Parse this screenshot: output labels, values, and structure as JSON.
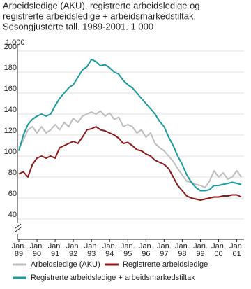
{
  "chart_data": {
    "type": "line",
    "title": [
      "Arbeidsledige (AKU), registrerte arbeidsledige og",
      "registrerte arbeidsledige + arbeidsmarkedstiltak.",
      "Sesongjusterte tall. 1989-2001. 1 000"
    ],
    "y_unit": "1 000",
    "x": [
      1989,
      1989.25,
      1989.5,
      1989.75,
      1990,
      1990.25,
      1990.5,
      1990.75,
      1991,
      1991.25,
      1991.5,
      1991.75,
      1992,
      1992.25,
      1992.5,
      1992.75,
      1993,
      1993.25,
      1993.5,
      1993.75,
      1994,
      1994.25,
      1994.5,
      1994.75,
      1995,
      1995.25,
      1995.5,
      1995.75,
      1996,
      1996.25,
      1996.5,
      1996.75,
      1997,
      1997.25,
      1997.5,
      1997.75,
      1998,
      1998.25,
      1998.5,
      1998.75,
      1999,
      1999.25,
      1999.5,
      1999.75,
      2000,
      2000.25,
      2000.5,
      2000.75,
      2001,
      2001.25
    ],
    "series": [
      {
        "name": "Arbeidsledige (AKU)",
        "color": "#bdbdbd",
        "values": [
          108,
          115,
          125,
          128,
          122,
          128,
          122,
          125,
          130,
          125,
          132,
          128,
          136,
          132,
          138,
          140,
          142,
          140,
          143,
          138,
          141,
          135,
          137,
          128,
          130,
          128,
          122,
          125,
          118,
          122,
          112,
          108,
          105,
          100,
          95,
          88,
          82,
          76,
          75,
          73,
          72,
          70,
          76,
          86,
          80,
          84,
          78,
          80,
          86,
          80
        ]
      },
      {
        "name": "Registrerte arbeidsledige",
        "color": "#8b1a1a",
        "values": [
          83,
          85,
          80,
          92,
          98,
          100,
          98,
          100,
          98,
          108,
          110,
          112,
          114,
          112,
          118,
          125,
          126,
          128,
          125,
          124,
          122,
          120,
          117,
          112,
          113,
          110,
          106,
          105,
          102,
          100,
          96,
          94,
          92,
          88,
          80,
          72,
          67,
          62,
          60,
          59,
          58,
          59,
          60,
          61,
          61,
          62,
          62,
          63,
          63,
          61
        ]
      },
      {
        "name": "Registrerte arbeidsledige + arbeidsmarkedstiltak",
        "color": "#1a9a9a",
        "values": [
          105,
          120,
          130,
          135,
          138,
          140,
          138,
          140,
          148,
          155,
          160,
          165,
          168,
          175,
          182,
          185,
          192,
          190,
          186,
          187,
          184,
          180,
          178,
          172,
          168,
          165,
          160,
          155,
          150,
          145,
          140,
          133,
          128,
          118,
          110,
          100,
          92,
          82,
          75,
          70,
          67,
          67,
          68,
          72,
          72,
          73,
          74,
          75,
          74,
          73
        ]
      }
    ],
    "xlim": [
      1989,
      2001.4
    ],
    "xticks": [
      {
        "value": 1989,
        "label": "Jan. 89"
      },
      {
        "value": 1990,
        "label": "Jan. 90"
      },
      {
        "value": 1991,
        "label": "Jan. 91"
      },
      {
        "value": 1992,
        "label": "Jan. 92"
      },
      {
        "value": 1993,
        "label": "Jan. 93"
      },
      {
        "value": 1994,
        "label": "Jan. 94"
      },
      {
        "value": 1995,
        "label": "Jan. 95"
      },
      {
        "value": 1996,
        "label": "Jan. 96"
      },
      {
        "value": 1997,
        "label": "Jan. 97"
      },
      {
        "value": 1998,
        "label": "Jan. 98"
      },
      {
        "value": 1999,
        "label": "Jan. 99"
      },
      {
        "value": 2000,
        "label": "Jan. 00"
      },
      {
        "value": 2001,
        "label": "Jan. 01"
      }
    ],
    "ylim": [
      40,
      200
    ],
    "yticks": [
      40,
      60,
      80,
      100,
      120,
      140,
      160,
      180,
      200
    ],
    "grid": true
  }
}
